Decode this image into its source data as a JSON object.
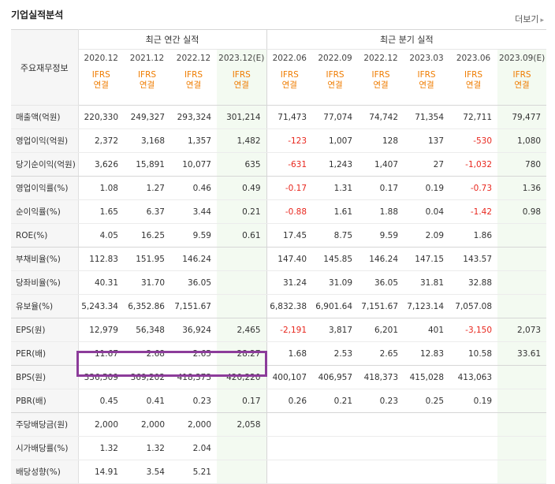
{
  "title": "기업실적분석",
  "more_label": "더보기",
  "header": {
    "label": "주요재무정보",
    "group_annual": "최근 연간 실적",
    "group_quarter": "최근 분기 실적",
    "periods": [
      "2020.12",
      "2021.12",
      "2022.12",
      "2023.12(E)",
      "2022.06",
      "2022.09",
      "2022.12",
      "2023.03",
      "2023.06",
      "2023.09(E)"
    ],
    "ifrs_line1": "IFRS",
    "ifrs_line2": "연결"
  },
  "rows": [
    {
      "label": "매출액(억원)",
      "values": [
        "220,330",
        "249,327",
        "293,324",
        "301,214",
        "71,473",
        "77,074",
        "74,742",
        "71,354",
        "72,711",
        "79,477"
      ]
    },
    {
      "label": "영업이익(억원)",
      "values": [
        "2,372",
        "3,168",
        "1,357",
        "1,482",
        "-123",
        "1,007",
        "128",
        "137",
        "-530",
        "1,080"
      ]
    },
    {
      "label": "당기순이익(억원)",
      "values": [
        "3,626",
        "15,891",
        "10,077",
        "635",
        "-631",
        "1,243",
        "1,407",
        "27",
        "-1,032",
        "780"
      ]
    },
    {
      "label": "영업이익률(%)",
      "values": [
        "1.08",
        "1.27",
        "0.46",
        "0.49",
        "-0.17",
        "1.31",
        "0.17",
        "0.19",
        "-0.73",
        "1.36"
      ]
    },
    {
      "label": "순이익률(%)",
      "values": [
        "1.65",
        "6.37",
        "3.44",
        "0.21",
        "-0.88",
        "1.61",
        "1.88",
        "0.04",
        "-1.42",
        "0.98"
      ]
    },
    {
      "label": "ROE(%)",
      "values": [
        "4.05",
        "16.25",
        "9.59",
        "0.61",
        "17.45",
        "8.75",
        "9.59",
        "2.09",
        "1.86",
        ""
      ]
    },
    {
      "label": "부채비율(%)",
      "values": [
        "112.83",
        "151.95",
        "146.24",
        "",
        "147.40",
        "145.85",
        "146.24",
        "147.15",
        "143.57",
        ""
      ]
    },
    {
      "label": "당좌비율(%)",
      "values": [
        "40.31",
        "31.70",
        "36.05",
        "",
        "31.24",
        "31.09",
        "36.05",
        "31.81",
        "32.88",
        ""
      ]
    },
    {
      "label": "유보율(%)",
      "values": [
        "5,243.34",
        "6,352.86",
        "7,151.67",
        "",
        "6,832.38",
        "6,901.64",
        "7,151.67",
        "7,123.14",
        "7,057.08",
        ""
      ]
    },
    {
      "label": "EPS(원)",
      "values": [
        "12,979",
        "56,348",
        "36,924",
        "2,465",
        "-2,191",
        "3,817",
        "6,201",
        "401",
        "-3,150",
        "2,073"
      ]
    },
    {
      "label": "PER(배)",
      "values": [
        "11.67",
        "2.68",
        "2.65",
        "28.27",
        "1.68",
        "2.53",
        "2.65",
        "12.83",
        "10.58",
        "33.61"
      ]
    },
    {
      "label": "BPS(원)",
      "values": [
        "336,509",
        "369,202",
        "418,373",
        "420,220",
        "400,107",
        "406,957",
        "418,373",
        "415,028",
        "413,063",
        ""
      ]
    },
    {
      "label": "PBR(배)",
      "values": [
        "0.45",
        "0.41",
        "0.23",
        "0.17",
        "0.26",
        "0.21",
        "0.23",
        "0.25",
        "0.19",
        ""
      ]
    },
    {
      "label": "주당배당금(원)",
      "values": [
        "2,000",
        "2,000",
        "2,000",
        "2,058",
        "",
        "",
        "",
        "",
        "",
        ""
      ]
    },
    {
      "label": "시가배당률(%)",
      "values": [
        "1.32",
        "1.32",
        "2.04",
        "",
        "",
        "",
        "",
        "",
        "",
        ""
      ]
    },
    {
      "label": "배당성향(%)",
      "values": [
        "14.91",
        "3.54",
        "5.21",
        "",
        "",
        "",
        "",
        "",
        "",
        ""
      ]
    }
  ],
  "highlight_color": "#8c3c9a",
  "negative_color": "#e8271e",
  "ifrs_color": "#ef7c00"
}
